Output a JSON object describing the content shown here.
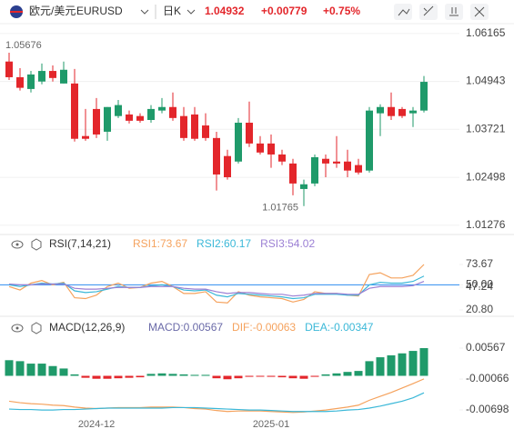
{
  "header": {
    "pair": "欧元/美元",
    "symbol": "EURUSD",
    "period": "日K",
    "price": "1.04932",
    "change": "+0.00779",
    "change_pct": "+0.75%"
  },
  "chart_data": [
    {
      "type": "candlestick",
      "open": [
        1.0545,
        1.0505,
        1.0475,
        1.0494,
        1.0521,
        1.0489,
        1.0489,
        1.0355,
        1.0424,
        1.0366,
        1.0406,
        1.041,
        1.0406,
        1.0396,
        1.042,
        1.0429,
        1.0406,
        1.041,
        1.0382,
        1.035,
        1.0304,
        1.029,
        1.0389,
        1.0336,
        1.0336,
        1.0308,
        1.0285,
        1.022,
        1.0234,
        1.0297,
        1.029,
        1.029,
        1.0281,
        1.0267,
        1.0413,
        1.0429,
        1.0424,
        1.0413,
        1.042
      ],
      "high": [
        1.05676,
        1.0528,
        1.0521,
        1.054,
        1.0535,
        1.0545,
        1.0526,
        1.0424,
        1.0452,
        1.0429,
        1.0447,
        1.042,
        1.0413,
        1.0434,
        1.0452,
        1.0466,
        1.0429,
        1.0429,
        1.0413,
        1.0366,
        1.032,
        1.0401,
        1.0443,
        1.0355,
        1.0359,
        1.032,
        1.0297,
        1.0244,
        1.0308,
        1.0308,
        1.0355,
        1.032,
        1.0297,
        1.0429,
        1.0436,
        1.0466,
        1.0429,
        1.0429,
        1.0508
      ],
      "low": [
        1.0498,
        1.0471,
        1.0466,
        1.0487,
        1.0494,
        1.0489,
        1.0341,
        1.0343,
        1.035,
        1.0343,
        1.0401,
        1.0387,
        1.0389,
        1.0389,
        1.0413,
        1.0394,
        1.0343,
        1.0343,
        1.0343,
        1.0216,
        1.0244,
        1.0285,
        1.0327,
        1.0308,
        1.0274,
        1.0281,
        1.0204,
        1.01765,
        1.0227,
        1.025,
        1.0274,
        1.025,
        1.0257,
        1.0262,
        1.0355,
        1.0396,
        1.0401,
        1.0378,
        1.0415
      ],
      "close": [
        1.0505,
        1.0478,
        1.0512,
        1.0521,
        1.0503,
        1.0524,
        1.0348,
        1.0348,
        1.0359,
        1.0429,
        1.0434,
        1.0394,
        1.0394,
        1.0424,
        1.0429,
        1.0401,
        1.035,
        1.0348,
        1.035,
        1.0257,
        1.025,
        1.0389,
        1.0336,
        1.0313,
        1.0308,
        1.029,
        1.0234,
        1.0232,
        1.0301,
        1.0285,
        1.0285,
        1.0267,
        1.0262,
        1.042,
        1.0429,
        1.0406,
        1.0406,
        1.042,
        1.04932
      ],
      "up_color": "#1f9a6a",
      "down_color": "#e3262b",
      "ylim": [
        1.0104,
        1.0637
      ],
      "yticks": [
        1.06165,
        1.04943,
        1.03721,
        1.02498,
        1.01276
      ],
      "grid": true,
      "annotations": [
        "1.05676",
        "1.01765"
      ]
    },
    {
      "type": "line",
      "title": "RSI(7,14,21)",
      "series": [
        {
          "name": "RSI1:73.67",
          "color": "#f5a25d",
          "values": [
            48,
            44,
            52,
            55,
            50,
            53,
            35,
            34,
            38,
            48,
            52,
            46,
            47,
            52,
            54,
            48,
            40,
            40,
            42,
            30,
            29,
            42,
            38,
            36,
            35,
            34,
            30,
            33,
            42,
            40,
            40,
            38,
            37,
            62,
            64,
            58,
            58,
            61,
            73.67
          ]
        },
        {
          "name": "RSI2:60.17",
          "color": "#3bb8d8",
          "values": [
            50,
            48,
            50,
            52,
            51,
            52,
            43,
            41,
            42,
            45,
            48,
            47,
            47,
            49,
            50,
            48,
            44,
            43,
            44,
            38,
            36,
            40,
            39,
            38,
            37,
            36,
            34,
            35,
            39,
            39,
            39,
            38,
            38,
            50,
            53,
            52,
            52,
            54,
            60.17
          ]
        },
        {
          "name": "RSI3:54.02",
          "color": "#9b7fd4",
          "values": [
            51,
            50,
            50,
            51,
            51,
            51,
            46,
            45,
            45,
            46,
            47,
            47,
            47,
            48,
            48,
            48,
            46,
            45,
            45,
            42,
            40,
            41,
            41,
            40,
            39,
            39,
            37,
            38,
            40,
            40,
            40,
            39,
            39,
            46,
            48,
            48,
            48,
            49,
            54.02
          ]
        }
      ],
      "ylim": [
        13.4,
        85.3
      ],
      "yticks": [
        73.67,
        {
          "value": 50,
          "label": "50.00"
        },
        47.24,
        {
          "value": 20.8,
          "label": "20.80"
        }
      ],
      "reference_line": {
        "value": 50,
        "color": "#2d8cf0"
      }
    },
    {
      "type": "macd",
      "title": "MACD(12,26,9)",
      "series": [
        {
          "name": "MACD:0.00567",
          "color": "#6a6aa8",
          "up_color": "#1f9a6a",
          "down_color": "#e3262b",
          "values": [
            0.0032,
            0.003,
            0.0025,
            0.0025,
            0.002,
            0.0015,
            0.0003,
            -0.0004,
            -0.0006,
            -0.0006,
            -0.0005,
            -0.0004,
            -0.0003,
            0.0004,
            0.0005,
            0.0004,
            0.0003,
            0.0002,
            0.0002,
            -0.0005,
            -0.0007,
            -0.0005,
            -0.0002,
            -0.0001,
            -0.0002,
            -0.0003,
            -0.0005,
            -0.0006,
            -0.0002,
            0.0003,
            0.0005,
            0.0008,
            0.001,
            0.003,
            0.0038,
            0.0042,
            0.0046,
            0.0051,
            0.00567
          ]
        },
        {
          "name": "DIF:-0.00063",
          "color": "#f5a25d",
          "values": [
            -0.0052,
            -0.0055,
            -0.0057,
            -0.0058,
            -0.006,
            -0.0061,
            -0.0064,
            -0.0066,
            -0.0067,
            -0.0066,
            -0.0065,
            -0.0065,
            -0.0065,
            -0.0064,
            -0.0064,
            -0.0064,
            -0.0065,
            -0.0067,
            -0.0068,
            -0.0071,
            -0.0073,
            -0.0072,
            -0.0072,
            -0.0072,
            -0.0073,
            -0.0074,
            -0.0075,
            -0.0074,
            -0.0072,
            -0.007,
            -0.0067,
            -0.0064,
            -0.006,
            -0.005,
            -0.0042,
            -0.0034,
            -0.0025,
            -0.0016,
            -0.00063
          ]
        },
        {
          "name": "DEA:-0.00347",
          "color": "#3bb8d8",
          "values": [
            -0.0068,
            -0.0069,
            -0.0069,
            -0.007,
            -0.007,
            -0.0069,
            -0.0069,
            -0.0068,
            -0.0067,
            -0.0066,
            -0.0066,
            -0.0066,
            -0.0066,
            -0.0066,
            -0.0066,
            -0.0065,
            -0.0065,
            -0.0065,
            -0.0066,
            -0.0067,
            -0.0068,
            -0.0069,
            -0.007,
            -0.007,
            -0.0071,
            -0.0072,
            -0.0073,
            -0.0073,
            -0.0073,
            -0.0073,
            -0.0072,
            -0.007,
            -0.0069,
            -0.0066,
            -0.0062,
            -0.0057,
            -0.0052,
            -0.0045,
            -0.00347
          ]
        }
      ],
      "ylim": [
        -0.00828,
        0.00772
      ],
      "yticks": [
        0.00567,
        -0.00066,
        -0.00698
      ],
      "categories": [
        null,
        null,
        null,
        null,
        null,
        null,
        null,
        null,
        "2024-12",
        null,
        null,
        null,
        null,
        null,
        null,
        null,
        null,
        null,
        null,
        null,
        null,
        null,
        null,
        null,
        "2025-01",
        null,
        null,
        null,
        null,
        null,
        null,
        null,
        null,
        null,
        null,
        null,
        null,
        null,
        null
      ]
    }
  ]
}
